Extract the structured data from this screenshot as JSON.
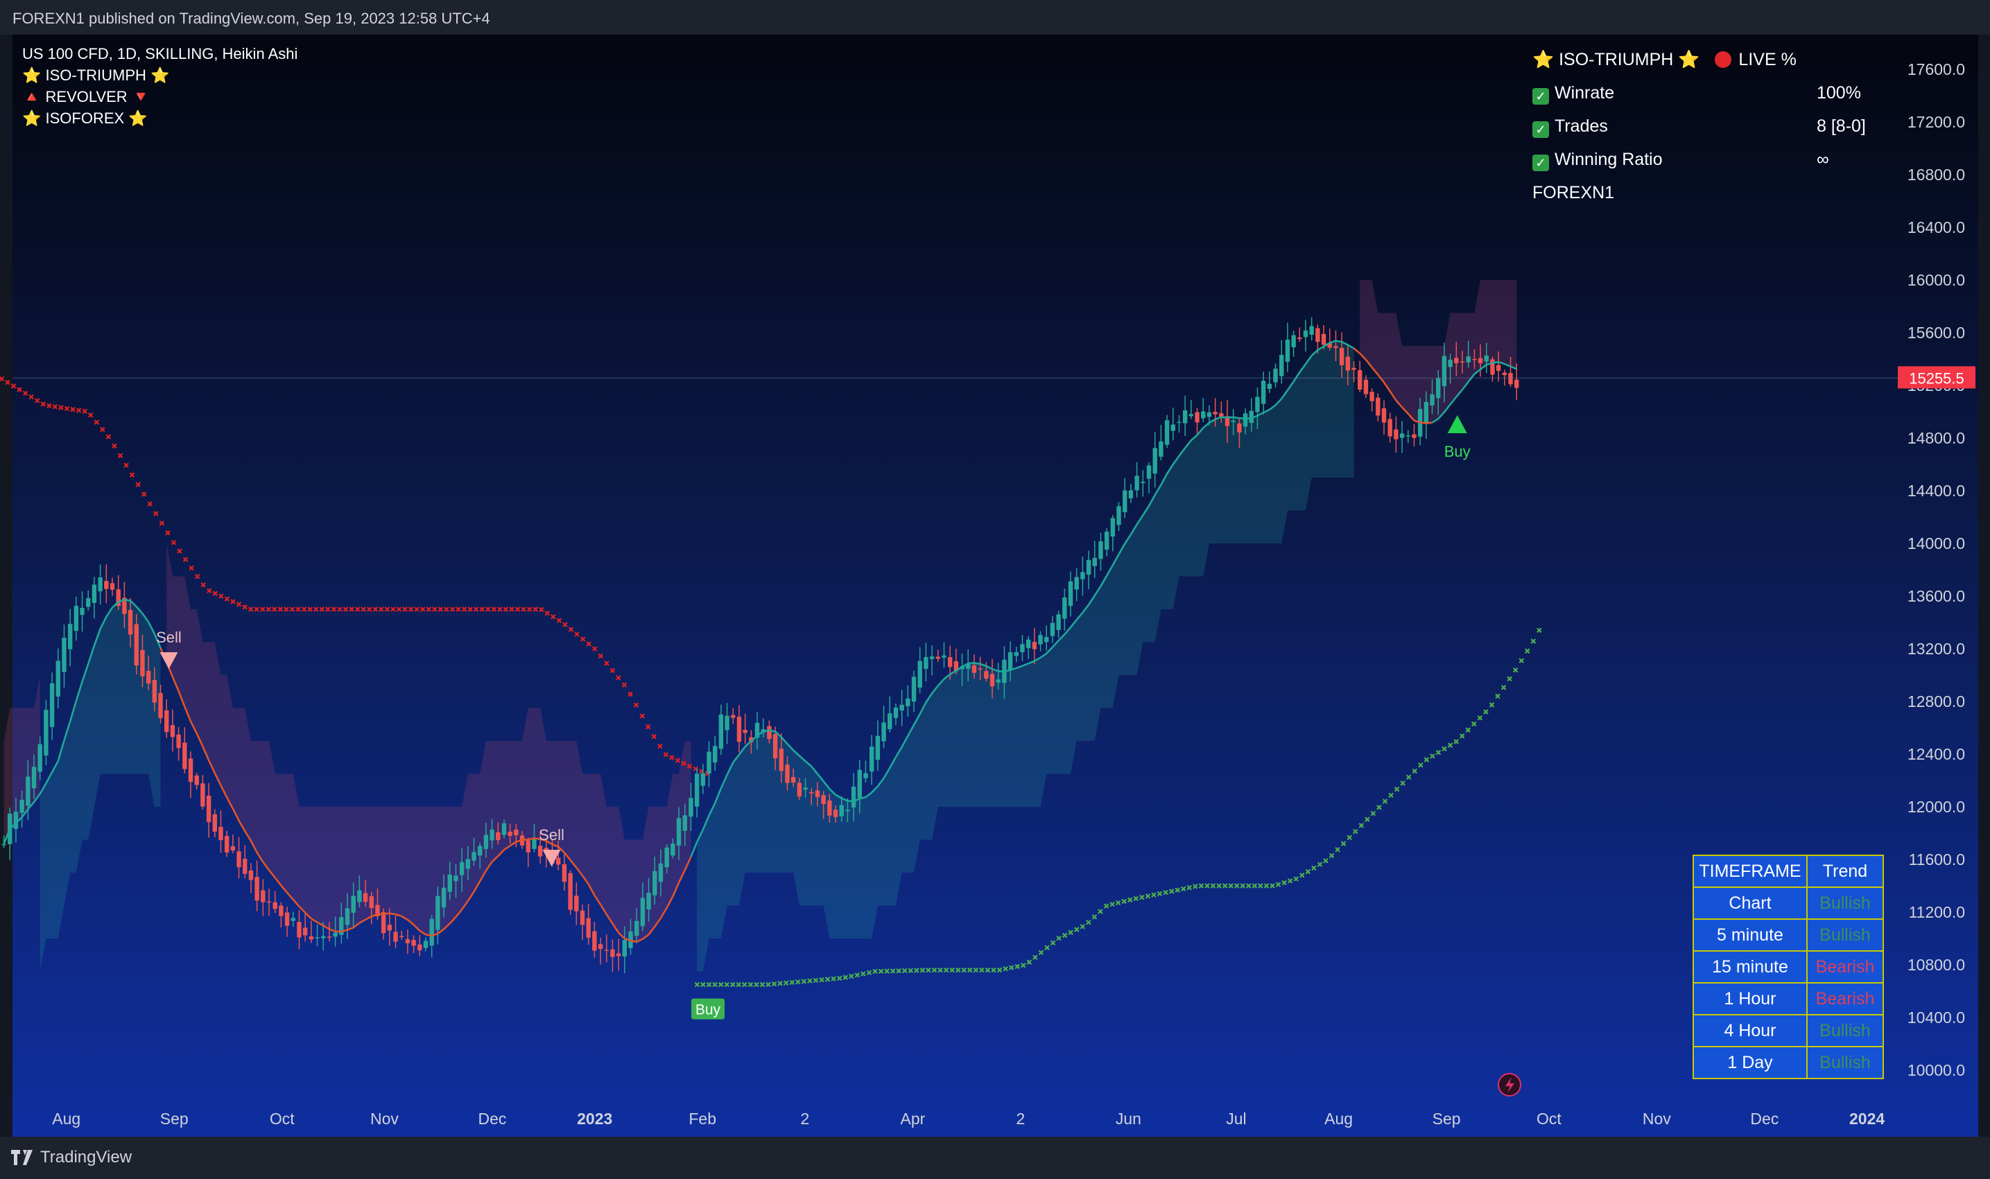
{
  "header": {
    "published": "FOREXN1 published on TradingView.com, Sep 19, 2023 12:58 UTC+4"
  },
  "legend": {
    "symbol": "US 100 CFD, 1D, SKILLING, Heikin Ashi",
    "indicators": [
      "⭐ ISO-TRIUMPH ⭐",
      "🔺 REVOLVER 🔻",
      "⭐ ISOFOREX ⭐"
    ]
  },
  "stats": {
    "title": "⭐ ISO-TRIUMPH ⭐",
    "live_label": "LIVE %",
    "rows": [
      {
        "label": "Winrate",
        "value": "100%"
      },
      {
        "label": "Trades",
        "value": "8 [8-0]"
      },
      {
        "label": "Winning Ratio",
        "value": "∞"
      }
    ],
    "author": "FOREXN1"
  },
  "timeframe_table": {
    "headers": [
      "TIMEFRAME",
      "Trend"
    ],
    "rows": [
      {
        "timeframe": "Chart",
        "trend": "Bullish"
      },
      {
        "timeframe": "5 minute",
        "trend": "Bullish"
      },
      {
        "timeframe": "15 minute",
        "trend": "Bearish"
      },
      {
        "timeframe": "1 Hour",
        "trend": "Bearish"
      },
      {
        "timeframe": "4 Hour",
        "trend": "Bullish"
      },
      {
        "timeframe": "1 Day",
        "trend": "Bullish"
      }
    ]
  },
  "colors": {
    "bullish_text": "#3e8f5a",
    "bearish_text": "#d9405e",
    "up_candle": "#26a69a",
    "down_candle": "#ef5350",
    "revolver_red": "#e02020",
    "revolver_green": "#4caf50",
    "price_label": "#f23645"
  },
  "footer": {
    "brand": "TradingView"
  },
  "chart_data": {
    "type": "candlestick",
    "style": "Heikin Ashi",
    "ylim": [
      10000,
      17800
    ],
    "y_ticks": [
      17600,
      17200,
      16800,
      16400,
      16000,
      15600,
      15200,
      14800,
      14400,
      14000,
      13600,
      13200,
      12800,
      12400,
      12000,
      11600,
      11200,
      10800,
      10400,
      10000
    ],
    "x_ticks": [
      {
        "label": "Aug",
        "t": 0.5
      },
      {
        "label": "Sep",
        "t": 1.5
      },
      {
        "label": "Oct",
        "t": 2.5
      },
      {
        "label": "Nov",
        "t": 3.45
      },
      {
        "label": "Dec",
        "t": 4.45
      },
      {
        "label": "2023",
        "t": 5.4,
        "bold": true
      },
      {
        "label": "Feb",
        "t": 6.4
      },
      {
        "label": "2",
        "t": 7.35
      },
      {
        "label": "Apr",
        "t": 8.35
      },
      {
        "label": "2",
        "t": 9.35
      },
      {
        "label": "Jun",
        "t": 10.35
      },
      {
        "label": "Jul",
        "t": 11.35
      },
      {
        "label": "Aug",
        "t": 12.3
      },
      {
        "label": "Sep",
        "t": 13.3
      },
      {
        "label": "Oct",
        "t": 14.25
      },
      {
        "label": "Nov",
        "t": 15.25
      },
      {
        "label": "Dec",
        "t": 16.25
      },
      {
        "label": "2024",
        "t": 17.2,
        "bold": true
      }
    ],
    "last_price": "15255.5",
    "close_path": [
      [
        -0.1,
        11750
      ],
      [
        0.2,
        12300
      ],
      [
        0.45,
        13200
      ],
      [
        0.6,
        13500
      ],
      [
        0.85,
        13750
      ],
      [
        1.0,
        13500
      ],
      [
        1.2,
        13000
      ],
      [
        1.4,
        12600
      ],
      [
        1.6,
        12300
      ],
      [
        1.9,
        11800
      ],
      [
        2.2,
        11400
      ],
      [
        2.6,
        11100
      ],
      [
        2.9,
        10950
      ],
      [
        3.2,
        11400
      ],
      [
        3.5,
        11000
      ],
      [
        3.8,
        10900
      ],
      [
        4.0,
        11400
      ],
      [
        4.3,
        11700
      ],
      [
        4.6,
        11850
      ],
      [
        4.8,
        11700
      ],
      [
        5.05,
        11600
      ],
      [
        5.2,
        11200
      ],
      [
        5.4,
        10850
      ],
      [
        5.6,
        10900
      ],
      [
        5.85,
        11300
      ],
      [
        6.15,
        11800
      ],
      [
        6.45,
        12400
      ],
      [
        6.6,
        12700
      ],
      [
        6.8,
        12500
      ],
      [
        6.95,
        12600
      ],
      [
        7.2,
        12200
      ],
      [
        7.45,
        12050
      ],
      [
        7.7,
        11950
      ],
      [
        7.9,
        12300
      ],
      [
        8.1,
        12600
      ],
      [
        8.3,
        12850
      ],
      [
        8.5,
        13200
      ],
      [
        8.7,
        13050
      ],
      [
        8.9,
        13050
      ],
      [
        9.1,
        12950
      ],
      [
        9.3,
        13150
      ],
      [
        9.5,
        13250
      ],
      [
        9.7,
        13450
      ],
      [
        9.9,
        13800
      ],
      [
        10.1,
        14000
      ],
      [
        10.3,
        14350
      ],
      [
        10.5,
        14550
      ],
      [
        10.7,
        14900
      ],
      [
        10.9,
        15000
      ],
      [
        11.1,
        14950
      ],
      [
        11.3,
        14850
      ],
      [
        11.5,
        15000
      ],
      [
        11.7,
        15350
      ],
      [
        11.85,
        15650
      ],
      [
        12.0,
        15600
      ],
      [
        12.2,
        15550
      ],
      [
        12.4,
        15300
      ],
      [
        12.6,
        15050
      ],
      [
        12.8,
        14850
      ],
      [
        12.95,
        14750
      ],
      [
        13.1,
        15050
      ],
      [
        13.3,
        15450
      ],
      [
        13.5,
        15400
      ],
      [
        13.7,
        15350
      ],
      [
        13.85,
        15300
      ],
      [
        13.95,
        15250
      ]
    ],
    "revolver_red": [
      [
        -0.1,
        15250
      ],
      [
        0.3,
        15050
      ],
      [
        0.7,
        15000
      ],
      [
        0.9,
        14800
      ],
      [
        1.2,
        14400
      ],
      [
        1.5,
        14000
      ],
      [
        1.8,
        13650
      ],
      [
        2.2,
        13500
      ],
      [
        2.5,
        13500
      ],
      [
        3.0,
        13500
      ],
      [
        4.0,
        13500
      ],
      [
        4.9,
        13500
      ],
      [
        5.1,
        13400
      ],
      [
        5.4,
        13200
      ],
      [
        5.7,
        12900
      ],
      [
        5.9,
        12600
      ],
      [
        6.05,
        12400
      ],
      [
        6.3,
        12300
      ],
      [
        6.45,
        12250
      ]
    ],
    "revolver_green": [
      [
        6.35,
        10650
      ],
      [
        7.0,
        10650
      ],
      [
        7.7,
        10700
      ],
      [
        8.0,
        10750
      ],
      [
        8.5,
        10760
      ],
      [
        9.15,
        10760
      ],
      [
        9.4,
        10800
      ],
      [
        9.7,
        11000
      ],
      [
        9.95,
        11100
      ],
      [
        10.15,
        11250
      ],
      [
        10.4,
        11300
      ],
      [
        10.7,
        11350
      ],
      [
        11.0,
        11400
      ],
      [
        11.5,
        11400
      ],
      [
        11.7,
        11400
      ],
      [
        11.9,
        11450
      ],
      [
        12.2,
        11600
      ],
      [
        12.5,
        11850
      ],
      [
        12.8,
        12100
      ],
      [
        13.1,
        12350
      ],
      [
        13.4,
        12500
      ],
      [
        13.7,
        12750
      ],
      [
        13.95,
        13050
      ],
      [
        14.1,
        13250
      ],
      [
        14.2,
        13400
      ]
    ],
    "signals": [
      {
        "type": "sell",
        "label": "Sell",
        "t": 1.45,
        "price": 13100
      },
      {
        "type": "sell",
        "label": "Sell",
        "t": 5.0,
        "price": 11600
      },
      {
        "type": "buy",
        "label": "Buy",
        "t": 6.45,
        "price": 10460
      },
      {
        "type": "buy",
        "label": "Buy",
        "t": 13.4,
        "price": 14900
      }
    ]
  }
}
